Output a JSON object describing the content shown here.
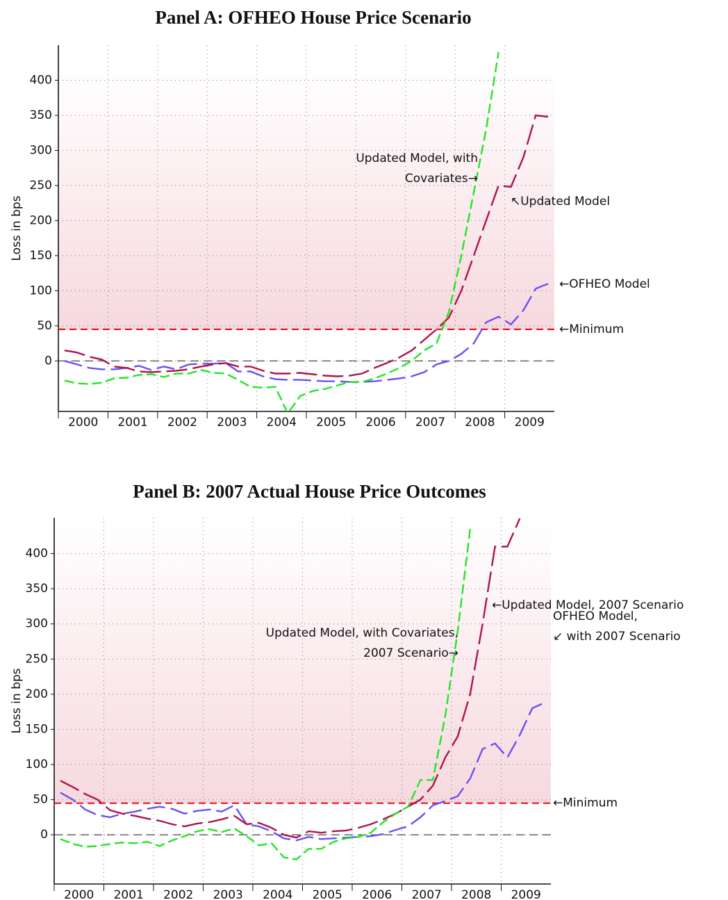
{
  "chart_data": [
    {
      "type": "line",
      "title": "Panel A: OFHEO House Price Scenario",
      "y_label": "Loss in bps",
      "x": [
        2000.125,
        2000.375,
        2000.625,
        2000.875,
        2001.125,
        2001.375,
        2001.625,
        2001.875,
        2002.125,
        2002.375,
        2002.625,
        2002.875,
        2003.125,
        2003.375,
        2003.625,
        2003.875,
        2004.125,
        2004.375,
        2004.625,
        2004.875,
        2005.125,
        2005.375,
        2005.625,
        2005.875,
        2006.125,
        2006.375,
        2006.625,
        2006.875,
        2007.125,
        2007.375,
        2007.625,
        2007.875,
        2008.125,
        2008.375,
        2008.625,
        2008.875,
        2009.125,
        2009.375,
        2009.625,
        2009.875
      ],
      "xlim": [
        2000,
        2010
      ],
      "xticks": [
        2000,
        2001,
        2002,
        2003,
        2004,
        2005,
        2006,
        2007,
        2008,
        2009
      ],
      "ylim": [
        -72,
        450
      ],
      "yticks": [
        0,
        50,
        100,
        150,
        200,
        250,
        300,
        350,
        400
      ],
      "grid": true,
      "series": [
        {
          "name": "OFHEO Model",
          "color": "#6a50f0",
          "values": [
            0,
            -5,
            -10,
            -12,
            -12,
            -10,
            -7,
            -13,
            -8,
            -12,
            -5,
            -4,
            -4,
            -3,
            -15,
            -15,
            -22,
            -26,
            -27,
            -27,
            -28,
            -29,
            -29,
            -30,
            -30,
            -29,
            -27,
            -25,
            -22,
            -16,
            -5,
            0,
            10,
            25,
            55,
            63,
            52,
            72,
            103,
            110
          ]
        },
        {
          "name": "Updated Model",
          "color": "#b0124a",
          "values": [
            15,
            12,
            6,
            2,
            -8,
            -10,
            -15,
            -16,
            -15,
            -14,
            -12,
            -8,
            -5,
            -3,
            -8,
            -8,
            -14,
            -18,
            -18,
            -17,
            -19,
            -21,
            -22,
            -21,
            -18,
            -10,
            -3,
            5,
            15,
            30,
            45,
            62,
            100,
            150,
            200,
            250,
            248,
            290,
            350,
            348
          ]
        },
        {
          "name": "Updated Model, with Covariates",
          "color": "#22e622",
          "values": [
            -28,
            -32,
            -33,
            -31,
            -25,
            -24,
            -20,
            -19,
            -23,
            -18,
            -18,
            -13,
            -17,
            -18,
            -27,
            -37,
            -38,
            -37,
            -75,
            -50,
            -43,
            -40,
            -35,
            -30,
            -30,
            -25,
            -18,
            -10,
            0,
            15,
            25,
            70,
            150,
            240,
            330,
            440,
            null,
            null,
            null,
            null
          ]
        }
      ],
      "reference_lines": [
        {
          "value": 0,
          "color": "#333333"
        },
        {
          "value": 45,
          "color": "#e8141e",
          "label": "←Minimum"
        }
      ],
      "annotations": [
        [
          "Updated Model, with",
          "Covariates→"
        ],
        [
          "↖Updated Model"
        ],
        [
          "←OFHEO Model"
        ]
      ]
    },
    {
      "type": "line",
      "title": "Panel B: 2007 Actual House Price Outcomes",
      "y_label": "Loss in bps",
      "x": [
        2000.125,
        2000.375,
        2000.625,
        2000.875,
        2001.125,
        2001.375,
        2001.625,
        2001.875,
        2002.125,
        2002.375,
        2002.625,
        2002.875,
        2003.125,
        2003.375,
        2003.625,
        2003.875,
        2004.125,
        2004.375,
        2004.625,
        2004.875,
        2005.125,
        2005.375,
        2005.625,
        2005.875,
        2006.125,
        2006.375,
        2006.625,
        2006.875,
        2007.125,
        2007.375,
        2007.625,
        2007.875,
        2008.125,
        2008.375,
        2008.625,
        2008.875,
        2009.125,
        2009.375,
        2009.625,
        2009.875
      ],
      "xlim": [
        2000,
        2010
      ],
      "xticks": [
        2000,
        2001,
        2002,
        2003,
        2004,
        2005,
        2006,
        2007,
        2008,
        2009
      ],
      "ylim": [
        -70,
        451
      ],
      "yticks": [
        0,
        50,
        100,
        150,
        200,
        250,
        300,
        350,
        400
      ],
      "grid": true,
      "series": [
        {
          "name": "OFHEO Model, with 2007 Scenario",
          "color": "#6a50f0",
          "values": [
            60,
            50,
            36,
            28,
            25,
            30,
            33,
            37,
            40,
            37,
            30,
            34,
            36,
            33,
            42,
            15,
            12,
            5,
            -5,
            -8,
            -3,
            -6,
            -5,
            -4,
            -3,
            -2,
            1,
            7,
            12,
            25,
            42,
            48,
            55,
            80,
            122,
            130,
            110,
            142,
            180,
            188
          ]
        },
        {
          "name": "Updated Model, 2007 Scenario",
          "color": "#b0124a",
          "values": [
            77,
            68,
            58,
            50,
            35,
            30,
            27,
            23,
            20,
            15,
            12,
            16,
            18,
            22,
            27,
            15,
            17,
            10,
            0,
            -4,
            5,
            3,
            5,
            6,
            10,
            15,
            22,
            30,
            40,
            50,
            70,
            110,
            140,
            200,
            300,
            410,
            410,
            450,
            null,
            null
          ]
        },
        {
          "name": "Updated Model, with Covariates, 2007 Scenario",
          "color": "#22e622",
          "values": [
            -6,
            -13,
            -17,
            -16,
            -13,
            -11,
            -12,
            -10,
            -16,
            -8,
            -2,
            5,
            8,
            4,
            9,
            -2,
            -15,
            -12,
            -32,
            -35,
            -20,
            -20,
            -10,
            -5,
            -3,
            3,
            18,
            30,
            40,
            78,
            78,
            170,
            290,
            435,
            null,
            null,
            null,
            null,
            null,
            null
          ]
        }
      ],
      "reference_lines": [
        {
          "value": 0,
          "color": "#333333"
        },
        {
          "value": 45,
          "color": "#e8141e",
          "label": "←Minimum"
        }
      ],
      "annotations": [
        [
          "Updated Model, with Covariates,",
          "2007 Scenario→"
        ],
        [
          "←Updated Model, 2007 Scenario"
        ],
        [
          "OFHEO Model,",
          "↙ with 2007 Scenario"
        ]
      ]
    }
  ]
}
